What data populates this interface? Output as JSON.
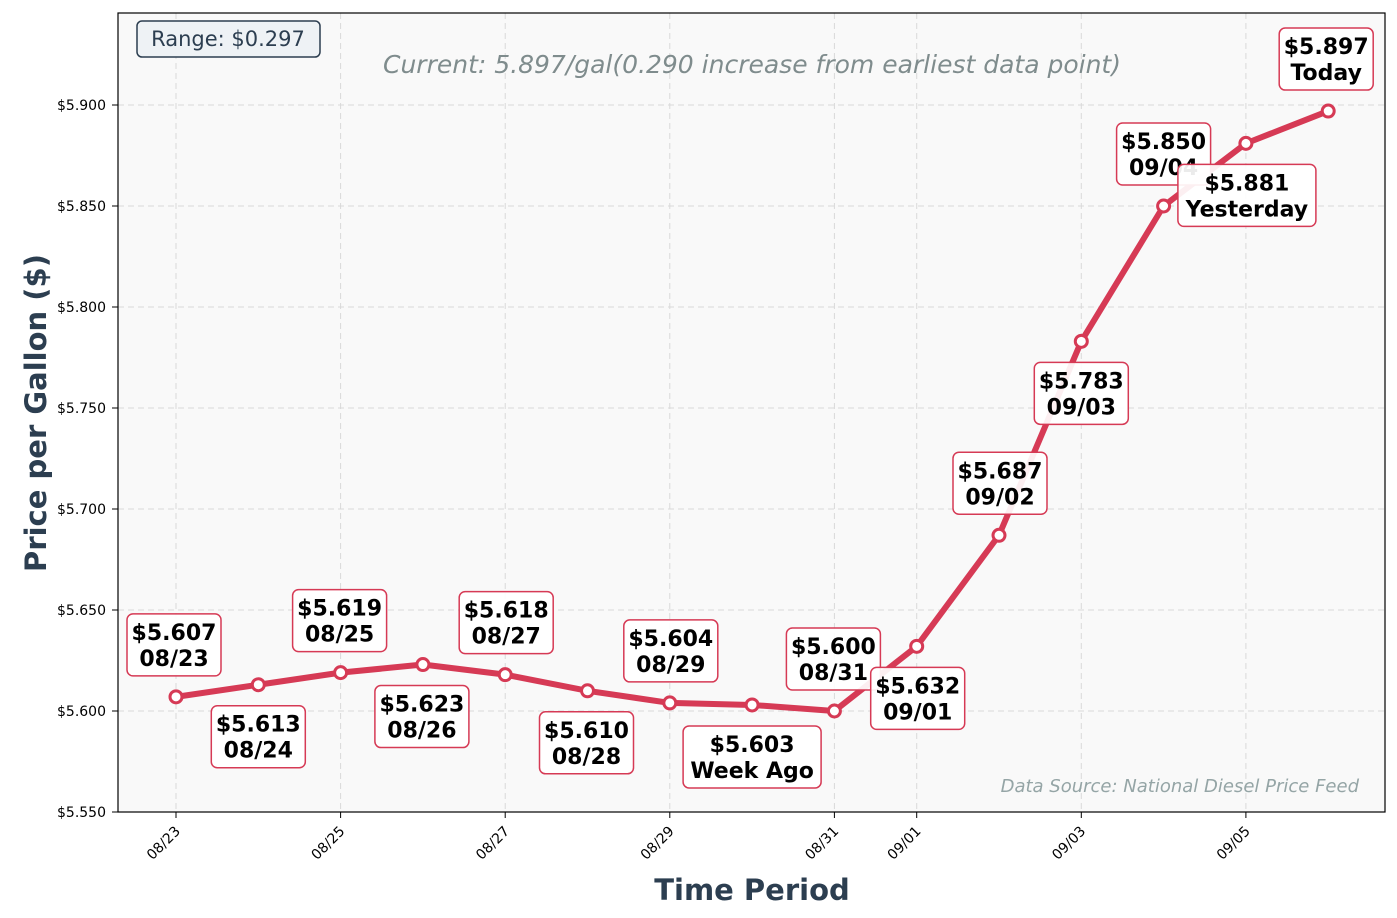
{
  "chart_data": {
    "type": "line",
    "title": "",
    "subtitle": "Current: 5.897/gal(0.290 increase from earliest data point)",
    "xlabel": "Time Period",
    "ylabel": "Price per Gallon ($)",
    "ylim": [
      5.55,
      5.946
    ],
    "yticks": [
      "$5.550",
      "$5.600",
      "$5.650",
      "$5.700",
      "$5.750",
      "$5.800",
      "$5.850",
      "$5.900"
    ],
    "xticks": [
      "08/23",
      "08/25",
      "08/27",
      "08/29",
      "08/31",
      "09/01",
      "09/03",
      "09/05"
    ],
    "grid": true,
    "range_badge": "Range: $0.297",
    "source_note": "Data Source: National Diesel Price Feed",
    "line_color": "#d63a55",
    "series": [
      {
        "values": [
          5.607,
          5.613,
          5.619,
          5.623,
          5.618,
          5.61,
          5.604,
          5.603,
          5.6,
          5.632,
          5.687,
          5.783,
          5.85,
          5.881,
          5.897
        ]
      }
    ],
    "annotations": [
      {
        "price": "$5.607",
        "label": "08/23"
      },
      {
        "price": "$5.613",
        "label": "08/24"
      },
      {
        "price": "$5.619",
        "label": "08/25"
      },
      {
        "price": "$5.623",
        "label": "08/26"
      },
      {
        "price": "$5.618",
        "label": "08/27"
      },
      {
        "price": "$5.610",
        "label": "08/28"
      },
      {
        "price": "$5.604",
        "label": "08/29"
      },
      {
        "price": "$5.603",
        "label": "Week Ago"
      },
      {
        "price": "$5.600",
        "label": "08/31"
      },
      {
        "price": "$5.632",
        "label": "09/01"
      },
      {
        "price": "$5.687",
        "label": "09/02"
      },
      {
        "price": "$5.783",
        "label": "09/03"
      },
      {
        "price": "$5.850",
        "label": "09/04"
      },
      {
        "price": "$5.881",
        "label": "Yesterday"
      },
      {
        "price": "$5.897",
        "label": "Today"
      }
    ]
  }
}
